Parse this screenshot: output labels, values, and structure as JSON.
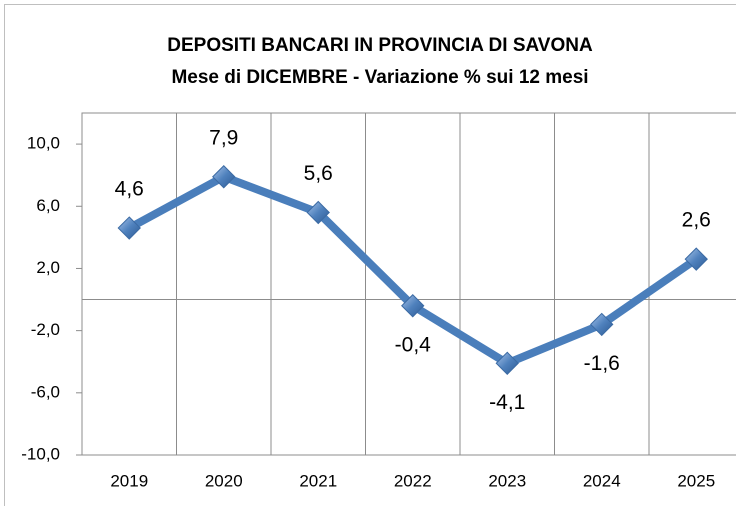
{
  "chart_data": {
    "type": "line",
    "title": "DEPOSITI BANCARI IN PROVINCIA DI SAVONA",
    "subtitle": "Mese di DICEMBRE - Variazione % sui 12 mesi",
    "categories": [
      "2019",
      "2020",
      "2021",
      "2022",
      "2023",
      "2024",
      "2025"
    ],
    "series": [
      {
        "color": "#4a7ebb",
        "values": [
          4.6,
          7.9,
          5.6,
          -0.4,
          -4.1,
          -1.6,
          2.6
        ],
        "value_labels": [
          "4,6",
          "7,9",
          "5,6",
          "-0,4",
          "-4,1",
          "-1,6",
          "2,6"
        ]
      }
    ],
    "ylim": [
      -10,
      12
    ],
    "yticks": [
      {
        "value": -10,
        "label": "-10,0"
      },
      {
        "value": -6,
        "label": "-6,0"
      },
      {
        "value": -2,
        "label": "-2,0"
      },
      {
        "value": 2,
        "label": "2,0"
      },
      {
        "value": 6,
        "label": "6,0"
      },
      {
        "value": 10,
        "label": "10,0"
      }
    ]
  }
}
